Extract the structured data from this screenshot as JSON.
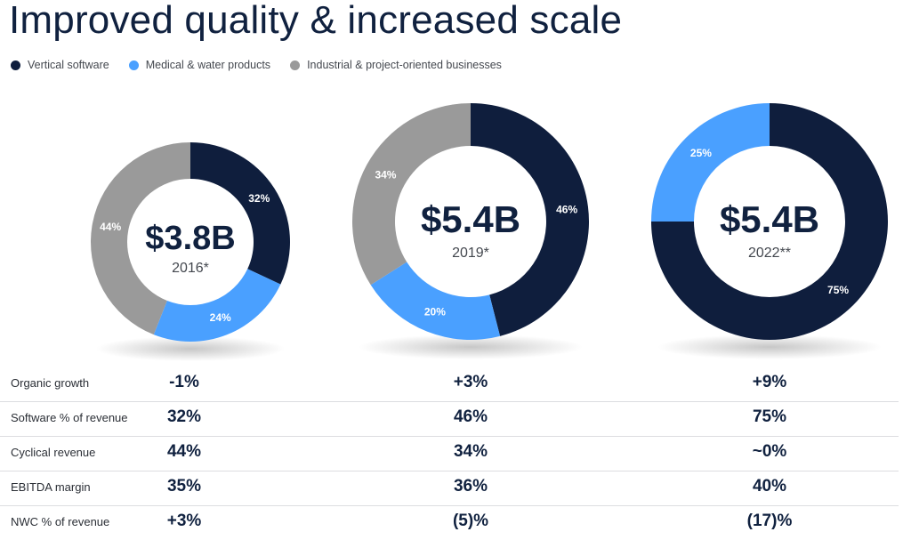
{
  "title": "Improved quality & increased scale",
  "legend": [
    {
      "label": "Vertical software",
      "color": "#0f1e3d"
    },
    {
      "label": "Medical & water products",
      "color": "#4aa0ff"
    },
    {
      "label": "Industrial & project-oriented businesses",
      "color": "#9a9a9a"
    }
  ],
  "chart_data": {
    "type": "pie",
    "variant": "donut",
    "title": "Improved quality & increased scale",
    "series_names": [
      "Vertical software",
      "Medical & water products",
      "Industrial & project-oriented businesses"
    ],
    "charts": [
      {
        "center_value": "$3.8B",
        "year_label": "2016*",
        "slices": [
          {
            "name": "Vertical software",
            "value": 32,
            "label": "32%"
          },
          {
            "name": "Medical & water products",
            "value": 24,
            "label": "24%"
          },
          {
            "name": "Industrial & project-oriented businesses",
            "value": 44,
            "label": "44%"
          }
        ]
      },
      {
        "center_value": "$5.4B",
        "year_label": "2019*",
        "slices": [
          {
            "name": "Vertical software",
            "value": 46,
            "label": "46%"
          },
          {
            "name": "Medical & water products",
            "value": 20,
            "label": "20%"
          },
          {
            "name": "Industrial & project-oriented businesses",
            "value": 34,
            "label": "34%"
          }
        ]
      },
      {
        "center_value": "$5.4B",
        "year_label": "2022**",
        "slices": [
          {
            "name": "Vertical software",
            "value": 75,
            "label": "75%"
          },
          {
            "name": "Medical & water products",
            "value": 25,
            "label": "25%"
          },
          {
            "name": "Industrial & project-oriented businesses",
            "value": 0,
            "label": ""
          }
        ]
      }
    ]
  },
  "metrics": [
    {
      "label": "Organic growth",
      "values": [
        "-1%",
        "+3%",
        "+9%"
      ]
    },
    {
      "label": "Software % of revenue",
      "values": [
        "32%",
        "46%",
        "75%"
      ]
    },
    {
      "label": "Cyclical revenue",
      "values": [
        "44%",
        "34%",
        "~0%"
      ]
    },
    {
      "label": "EBITDA margin",
      "values": [
        "35%",
        "36%",
        "40%"
      ]
    },
    {
      "label": "NWC % of revenue",
      "values": [
        "+3%",
        "(5)%",
        "(17)%"
      ]
    }
  ]
}
